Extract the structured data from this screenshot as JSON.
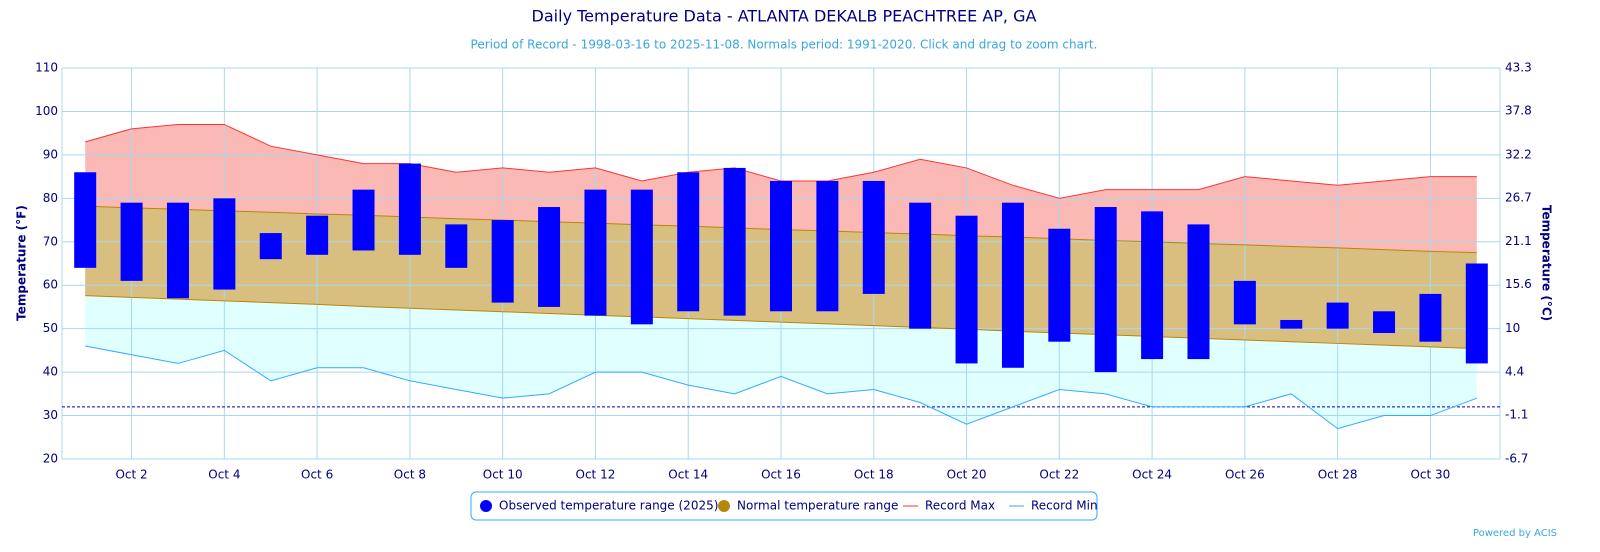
{
  "chart_data": {
    "type": "range",
    "title": "Daily Temperature Data - ATLANTA DEKALB PEACHTREE AP, GA",
    "subtitle": "Period of Record - 1998-03-16 to 2025-11-08. Normals period: 1991-2020. Click and drag to zoom chart.",
    "y_label": "Temperature (°F)",
    "y2_label": "Temperature (°C)",
    "credit": "Powered by ACIS",
    "categories": [
      null,
      "Oct 2",
      null,
      "Oct 4",
      null,
      "Oct 6",
      null,
      "Oct 8",
      null,
      "Oct 10",
      null,
      "Oct 12",
      null,
      "Oct 14",
      null,
      "Oct 16",
      null,
      "Oct 18",
      null,
      "Oct 20",
      null,
      "Oct 22",
      null,
      "Oct 24",
      null,
      "Oct 26",
      null,
      "Oct 28",
      null,
      "Oct 30",
      null
    ],
    "ylim": [
      20,
      110
    ],
    "yticks": [
      20,
      30,
      40,
      50,
      60,
      70,
      80,
      90,
      100,
      110
    ],
    "y2lim": [
      -6.7,
      43.3
    ],
    "y2ticks": [
      -6.7,
      -1.1,
      4.4,
      10,
      15.6,
      21.1,
      26.7,
      32.2,
      37.8,
      43.3
    ],
    "grid": true,
    "reference_line": 32,
    "series": [
      {
        "name": "Observed temperature range (2025)",
        "color": "#0000ff",
        "low": [
          64,
          61,
          57,
          59,
          66,
          67,
          68,
          67,
          64,
          56,
          55,
          53,
          51,
          54,
          53,
          54,
          54,
          58,
          50,
          42,
          41,
          47,
          40,
          43,
          43,
          51,
          50,
          50,
          49,
          47,
          42
        ],
        "high": [
          86,
          79,
          79,
          80,
          72,
          76,
          82,
          88,
          74,
          75,
          78,
          82,
          82,
          86,
          87,
          84,
          84,
          84,
          79,
          76,
          79,
          73,
          78,
          77,
          74,
          61,
          52,
          56,
          54,
          58,
          65
        ]
      },
      {
        "name": "Normal temperature range",
        "color": "#b8860b",
        "fill": "#d9bf7f",
        "low": [
          57.6,
          57.2,
          56.8,
          56.4,
          56.0,
          55.6,
          55.1,
          54.7,
          54.3,
          53.9,
          53.5,
          53.1,
          52.7,
          52.3,
          51.9,
          51.5,
          51.1,
          50.7,
          50.3,
          49.9,
          49.4,
          49.0,
          48.6,
          48.2,
          47.8,
          47.4,
          47.0,
          46.6,
          46.2,
          45.8,
          45.4
        ],
        "high": [
          78.2,
          77.8,
          77.5,
          77.1,
          76.8,
          76.4,
          76.1,
          75.7,
          75.3,
          75.0,
          74.6,
          74.3,
          73.9,
          73.6,
          73.2,
          72.8,
          72.5,
          72.1,
          71.8,
          71.4,
          71.1,
          70.7,
          70.3,
          70.0,
          69.6,
          69.3,
          68.9,
          68.6,
          68.2,
          67.8,
          67.5
        ]
      },
      {
        "name": "Record Max",
        "color": "#ff3333",
        "fill": "#fbb9b5",
        "values": [
          93,
          96,
          97,
          97,
          92,
          90,
          88,
          88,
          86,
          87,
          86,
          87,
          84,
          86,
          87,
          84,
          84,
          86,
          89,
          87,
          83,
          80,
          82,
          82,
          82,
          85,
          84,
          83,
          84,
          85,
          85
        ]
      },
      {
        "name": "Record Min",
        "color": "#33aaff",
        "fill": "#e0ffff",
        "values": [
          46,
          44,
          42,
          45,
          38,
          41,
          41,
          38,
          36,
          34,
          35,
          40,
          40,
          37,
          35,
          39,
          35,
          36,
          33,
          28,
          32,
          36,
          35,
          32,
          32,
          32,
          35,
          27,
          30,
          30,
          34
        ]
      }
    ]
  }
}
